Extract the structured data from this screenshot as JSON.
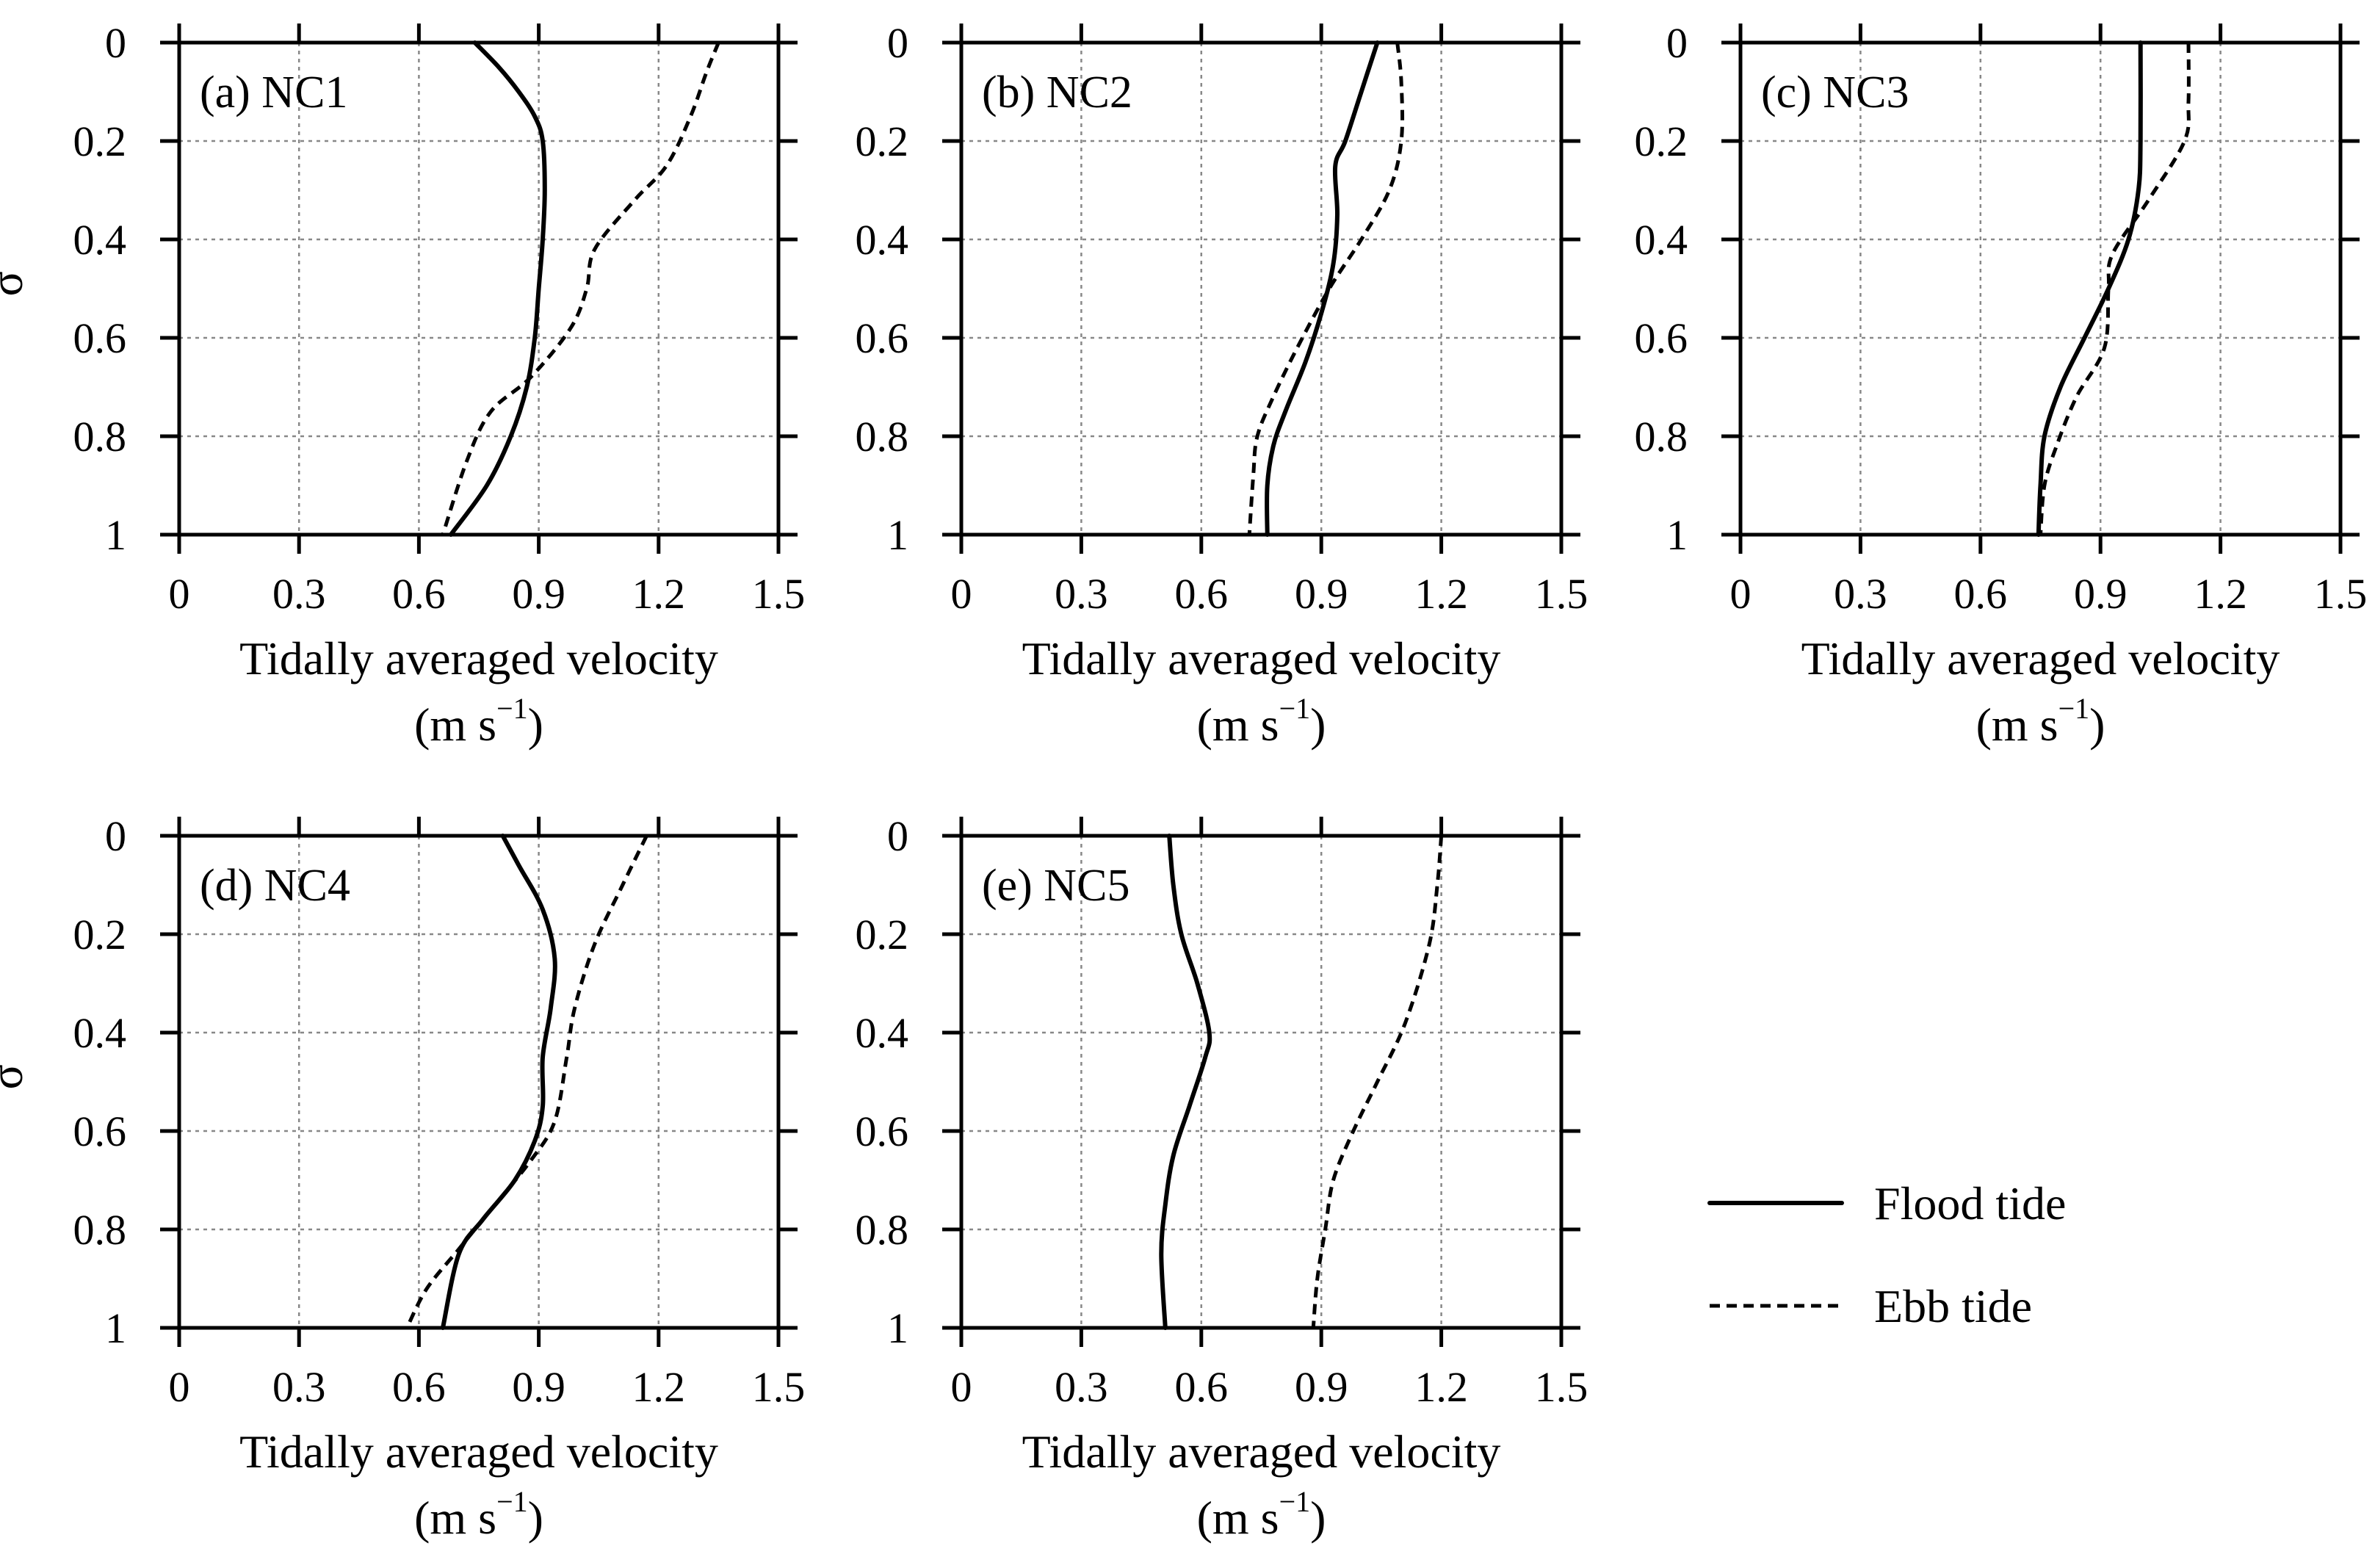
{
  "chart_data": [
    {
      "type": "line",
      "panel_label": "(a) NC1",
      "ylabel": "σ",
      "xlabel": "Tidally averaged velocity",
      "xunit_pre": "(m s",
      "xunit_sup": "−1",
      "xunit_post": ")",
      "xlim": [
        0,
        1.5
      ],
      "ylim": [
        0,
        1
      ],
      "y_reversed": true,
      "x_ticks": [
        "0",
        "0.3",
        "0.6",
        "0.9",
        "1.2",
        "1.5"
      ],
      "y_ticks": [
        "0",
        "0.2",
        "0.4",
        "0.6",
        "0.8",
        "1"
      ],
      "grid": true,
      "series": [
        {
          "name": "Flood tide",
          "style": "solid",
          "x": [
            0.74,
            0.8,
            0.85,
            0.89,
            0.91,
            0.915,
            0.91,
            0.9,
            0.89,
            0.87,
            0.83,
            0.77,
            0.68
          ],
          "y": [
            0,
            0.05,
            0.1,
            0.15,
            0.2,
            0.3,
            0.4,
            0.5,
            0.6,
            0.7,
            0.8,
            0.9,
            1.0
          ]
        },
        {
          "name": "Ebb tide",
          "style": "dashed",
          "x": [
            1.35,
            1.32,
            1.28,
            1.22,
            1.14,
            1.04,
            1.02,
            0.98,
            0.88,
            0.78,
            0.72,
            0.66
          ],
          "y": [
            0,
            0.06,
            0.15,
            0.25,
            0.32,
            0.42,
            0.5,
            0.58,
            0.68,
            0.75,
            0.85,
            1.0
          ]
        }
      ]
    },
    {
      "type": "line",
      "panel_label": "(b) NC2",
      "ylabel": "",
      "xlabel": "Tidally averaged velocity",
      "xunit_pre": "(m s",
      "xunit_sup": "−1",
      "xunit_post": ")",
      "xlim": [
        0,
        1.5
      ],
      "ylim": [
        0,
        1
      ],
      "y_reversed": true,
      "x_ticks": [
        "0",
        "0.3",
        "0.6",
        "0.9",
        "1.2",
        "1.5"
      ],
      "y_ticks": [
        "0",
        "0.2",
        "0.4",
        "0.6",
        "0.8",
        "1"
      ],
      "grid": true,
      "series": [
        {
          "name": "Flood tide",
          "style": "solid",
          "x": [
            1.04,
            1.0,
            0.96,
            0.935,
            0.94,
            0.93,
            0.9,
            0.86,
            0.81,
            0.78,
            0.765,
            0.765
          ],
          "y": [
            0,
            0.1,
            0.2,
            0.25,
            0.35,
            0.45,
            0.55,
            0.65,
            0.75,
            0.82,
            0.9,
            1.0
          ]
        },
        {
          "name": "Ebb tide",
          "style": "dashed",
          "x": [
            1.09,
            1.1,
            1.1,
            1.07,
            1.0,
            0.92,
            0.84,
            0.78,
            0.74,
            0.73,
            0.72
          ],
          "y": [
            0,
            0.08,
            0.2,
            0.3,
            0.4,
            0.5,
            0.62,
            0.72,
            0.8,
            0.88,
            1.0
          ]
        }
      ]
    },
    {
      "type": "line",
      "panel_label": "(c) NC3",
      "ylabel": "",
      "xlabel": "Tidally averaged velocity",
      "xunit_pre": "(m s",
      "xunit_sup": "−1",
      "xunit_post": ")",
      "xlim": [
        0,
        1.5
      ],
      "ylim": [
        0,
        1
      ],
      "y_reversed": true,
      "x_ticks": [
        "0",
        "0.3",
        "0.6",
        "0.9",
        "1.2",
        "1.5"
      ],
      "y_ticks": [
        "0",
        "0.2",
        "0.4",
        "0.6",
        "0.8",
        "1"
      ],
      "grid": true,
      "series": [
        {
          "name": "Flood tide",
          "style": "solid",
          "x": [
            1.0,
            1.0,
            0.995,
            0.97,
            0.92,
            0.86,
            0.8,
            0.76,
            0.75,
            0.745
          ],
          "y": [
            0,
            0.2,
            0.3,
            0.4,
            0.5,
            0.6,
            0.7,
            0.8,
            0.9,
            1.0
          ]
        },
        {
          "name": "Ebb tide",
          "style": "dashed",
          "x": [
            1.12,
            1.12,
            1.11,
            1.02,
            0.93,
            0.92,
            0.91,
            0.84,
            0.79,
            0.76,
            0.75
          ],
          "y": [
            0,
            0.12,
            0.2,
            0.32,
            0.43,
            0.5,
            0.62,
            0.72,
            0.82,
            0.9,
            1.0
          ]
        }
      ]
    },
    {
      "type": "line",
      "panel_label": "(d) NC4",
      "ylabel": "σ",
      "xlabel": "Tidally averaged velocity",
      "xunit_pre": "(m s",
      "xunit_sup": "−1",
      "xunit_post": ")",
      "xlim": [
        0,
        1.5
      ],
      "ylim": [
        0,
        1
      ],
      "y_reversed": true,
      "x_ticks": [
        "0",
        "0.3",
        "0.6",
        "0.9",
        "1.2",
        "1.5"
      ],
      "y_ticks": [
        "0",
        "0.2",
        "0.4",
        "0.6",
        "0.8",
        "1"
      ],
      "grid": true,
      "series": [
        {
          "name": "Flood tide",
          "style": "solid",
          "x": [
            0.81,
            0.85,
            0.91,
            0.94,
            0.93,
            0.91,
            0.91,
            0.89,
            0.84,
            0.76,
            0.7,
            0.66
          ],
          "y": [
            0,
            0.06,
            0.15,
            0.25,
            0.35,
            0.45,
            0.55,
            0.62,
            0.7,
            0.78,
            0.85,
            1.0
          ]
        },
        {
          "name": "Ebb tide",
          "style": "dashed",
          "x": [
            1.17,
            1.11,
            1.04,
            0.99,
            0.97,
            0.94,
            0.88,
            0.79,
            0.7,
            0.62,
            0.57
          ],
          "y": [
            0,
            0.1,
            0.22,
            0.35,
            0.45,
            0.58,
            0.66,
            0.75,
            0.84,
            0.92,
            1.0
          ]
        }
      ]
    },
    {
      "type": "line",
      "panel_label": "(e) NC5",
      "ylabel": "",
      "xlabel": "Tidally averaged velocity",
      "xunit_pre": "(m s",
      "xunit_sup": "−1",
      "xunit_post": ")",
      "xlim": [
        0,
        1.5
      ],
      "ylim": [
        0,
        1
      ],
      "y_reversed": true,
      "x_ticks": [
        "0",
        "0.3",
        "0.6",
        "0.9",
        "1.2",
        "1.5"
      ],
      "y_ticks": [
        "0",
        "0.2",
        "0.4",
        "0.6",
        "0.8",
        "1"
      ],
      "grid": true,
      "series": [
        {
          "name": "Flood tide",
          "style": "solid",
          "x": [
            0.52,
            0.53,
            0.55,
            0.59,
            0.62,
            0.61,
            0.57,
            0.53,
            0.51,
            0.5,
            0.51
          ],
          "y": [
            0,
            0.1,
            0.2,
            0.3,
            0.4,
            0.45,
            0.55,
            0.65,
            0.75,
            0.85,
            1.0
          ]
        },
        {
          "name": "Ebb tide",
          "style": "dashed",
          "x": [
            1.2,
            1.19,
            1.17,
            1.11,
            1.04,
            0.98,
            0.93,
            0.91,
            0.89,
            0.88
          ],
          "y": [
            0,
            0.1,
            0.22,
            0.38,
            0.5,
            0.6,
            0.7,
            0.8,
            0.9,
            1.0
          ]
        }
      ]
    }
  ],
  "legend": {
    "placement": "lower-right",
    "items": [
      {
        "label": "Flood tide",
        "style": "solid"
      },
      {
        "label": "Ebb tide",
        "style": "dashed"
      }
    ]
  }
}
